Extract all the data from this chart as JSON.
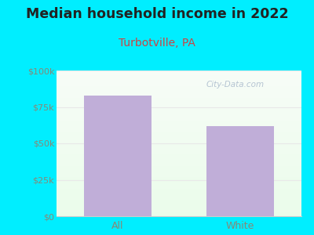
{
  "title": "Median household income in 2022",
  "subtitle": "Turbotville, PA",
  "categories": [
    "All",
    "White"
  ],
  "values": [
    83000,
    62000
  ],
  "bar_color": "#c0aed8",
  "title_fontsize": 12.5,
  "subtitle_fontsize": 10,
  "subtitle_color": "#cc4444",
  "title_color": "#222222",
  "background_color": "#00eeff",
  "tick_color": "#888877",
  "tick_fontsize": 8,
  "xlabel_fontsize": 9,
  "ylim": [
    0,
    100000
  ],
  "yticks": [
    0,
    25000,
    50000,
    75000,
    100000
  ],
  "watermark": "City-Data.com",
  "watermark_color": "#aabbcc",
  "grid_color": "#e8e8e8"
}
